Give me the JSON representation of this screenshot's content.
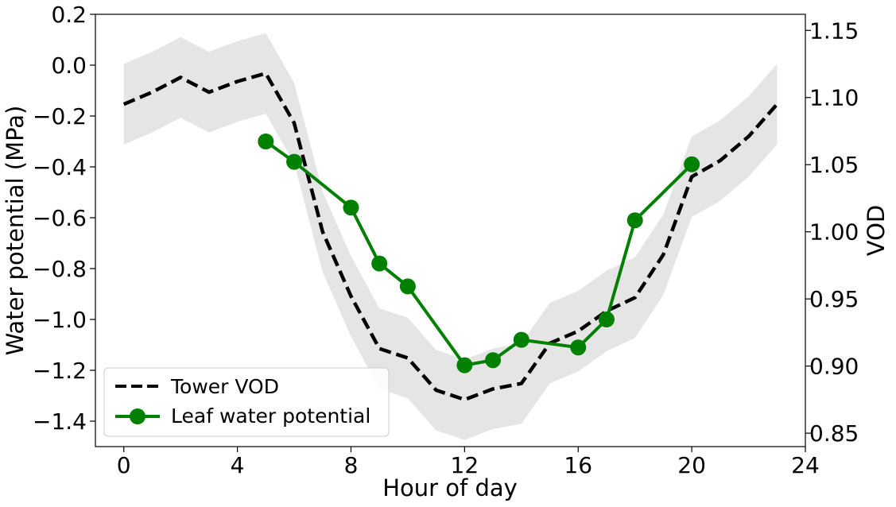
{
  "chart_data": {
    "type": "line",
    "xlabel": "Hour of day",
    "ylabel_left": "Water potential (MPa)",
    "ylabel_right": "VOD",
    "xlim": [
      -1,
      24
    ],
    "ylim_left": [
      -1.5,
      0.2
    ],
    "ylim_right": [
      0.84,
      1.162
    ],
    "xticks": [
      0,
      4,
      8,
      12,
      16,
      20,
      24
    ],
    "yticks_left": [
      0.2,
      0.0,
      -0.2,
      -0.4,
      -0.6,
      -0.8,
      -1.0,
      -1.2,
      -1.4
    ],
    "yticks_right": [
      1.15,
      1.1,
      1.05,
      1.0,
      0.95,
      0.9,
      0.85
    ],
    "grid": false,
    "legend_position": "lower-left",
    "series": [
      {
        "name": "Tower VOD",
        "axis": "right",
        "style": "dashed",
        "color": "#000000",
        "band_color": "#e5e5e5",
        "x": [
          0,
          1,
          2,
          3,
          4,
          5,
          6,
          7,
          8,
          9,
          10,
          11,
          12,
          13,
          14,
          15,
          16,
          17,
          18,
          19,
          20,
          21,
          22,
          23
        ],
        "values": [
          1.095,
          1.104,
          1.115,
          1.104,
          1.112,
          1.118,
          1.081,
          1.0,
          0.952,
          0.913,
          0.906,
          0.882,
          0.875,
          0.883,
          0.887,
          0.917,
          0.926,
          0.941,
          0.951,
          0.983,
          1.041,
          1.053,
          1.071,
          1.095
        ],
        "band_upper": [
          1.125,
          1.134,
          1.145,
          1.134,
          1.142,
          1.148,
          1.111,
          1.03,
          0.982,
          0.943,
          0.936,
          0.912,
          0.905,
          0.913,
          0.917,
          0.947,
          0.956,
          0.971,
          0.981,
          1.013,
          1.071,
          1.083,
          1.101,
          1.125
        ],
        "band_lower": [
          1.065,
          1.074,
          1.085,
          1.074,
          1.082,
          1.088,
          1.051,
          0.97,
          0.922,
          0.883,
          0.876,
          0.852,
          0.845,
          0.853,
          0.857,
          0.887,
          0.896,
          0.911,
          0.921,
          0.953,
          1.011,
          1.023,
          1.041,
          1.065
        ]
      },
      {
        "name": "Leaf water potential",
        "axis": "left",
        "style": "solid-marker",
        "color": "#008000",
        "x": [
          5,
          6,
          8,
          9,
          10,
          12,
          13,
          14,
          16,
          17,
          18,
          20
        ],
        "values": [
          -0.3,
          -0.38,
          -0.56,
          -0.78,
          -0.87,
          -1.18,
          -1.16,
          -1.08,
          -1.11,
          -1.0,
          -0.61,
          -0.39
        ]
      }
    ]
  }
}
